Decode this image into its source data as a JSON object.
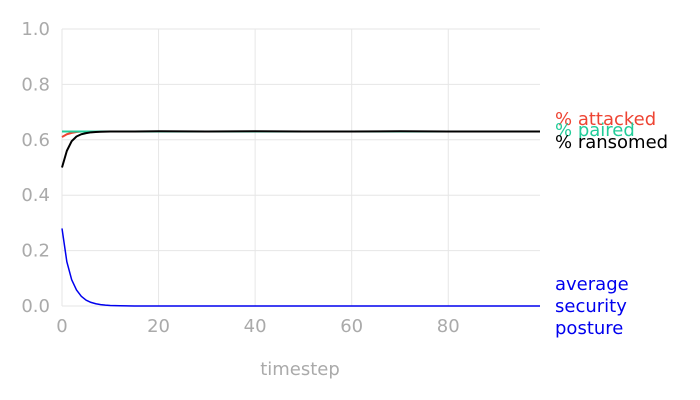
{
  "chart_data": {
    "type": "line",
    "xlabel": "timestep",
    "ylabel": "",
    "xlim": [
      0,
      99
    ],
    "ylim": [
      0,
      1.0
    ],
    "x_ticks": [
      0,
      20,
      40,
      60,
      80
    ],
    "y_ticks": [
      0.0,
      0.2,
      0.4,
      0.6,
      0.8,
      1.0
    ],
    "x_tick_labels": [
      "0",
      "20",
      "40",
      "60",
      "80"
    ],
    "y_tick_labels": [
      "0.0",
      "0.2",
      "0.4",
      "0.6",
      "0.8",
      "1.0"
    ],
    "grid": true,
    "legend": "right, direct labels",
    "series": [
      {
        "name": "% attacked",
        "color": "#ee4433",
        "x": [
          0,
          1,
          2,
          3,
          4,
          5,
          6,
          8,
          10,
          15,
          20,
          30,
          40,
          50,
          60,
          70,
          80,
          90,
          99
        ],
        "values": [
          0.61,
          0.62,
          0.625,
          0.628,
          0.63,
          0.63,
          0.63,
          0.63,
          0.63,
          0.63,
          0.63,
          0.63,
          0.63,
          0.63,
          0.63,
          0.63,
          0.63,
          0.63,
          0.63
        ]
      },
      {
        "name": "% paired",
        "color": "#22cc99",
        "x": [
          0,
          1,
          2,
          3,
          4,
          5,
          6,
          8,
          10,
          15,
          20,
          30,
          40,
          50,
          60,
          70,
          80,
          90,
          99
        ],
        "values": [
          0.63,
          0.63,
          0.63,
          0.63,
          0.63,
          0.63,
          0.63,
          0.63,
          0.63,
          0.63,
          0.63,
          0.63,
          0.63,
          0.63,
          0.63,
          0.63,
          0.63,
          0.63,
          0.63
        ]
      },
      {
        "name": "% ransomed",
        "color": "#000000",
        "x": [
          0,
          1,
          2,
          3,
          4,
          5,
          6,
          7,
          8,
          10,
          12,
          15,
          20,
          30,
          40,
          50,
          60,
          70,
          80,
          90,
          99
        ],
        "values": [
          0.5,
          0.56,
          0.595,
          0.612,
          0.62,
          0.624,
          0.627,
          0.628,
          0.629,
          0.63,
          0.63,
          0.63,
          0.631,
          0.63,
          0.631,
          0.63,
          0.63,
          0.631,
          0.63,
          0.63,
          0.63
        ]
      },
      {
        "name": "average security posture",
        "color": "#0000ee",
        "x": [
          0,
          1,
          2,
          3,
          4,
          5,
          6,
          7,
          8,
          9,
          10,
          12,
          15,
          20,
          30,
          40,
          60,
          80,
          99
        ],
        "values": [
          0.28,
          0.16,
          0.095,
          0.058,
          0.035,
          0.021,
          0.013,
          0.008,
          0.005,
          0.003,
          0.002,
          0.001,
          0.0,
          0.0,
          0.0,
          0.0,
          0.0,
          0.0,
          0.0
        ]
      }
    ],
    "series_labels": [
      {
        "text": "% attacked",
        "color": "#ee4433"
      },
      {
        "text": "% paired",
        "color": "#22cc99"
      },
      {
        "text": "% ransomed",
        "color": "#000000"
      },
      {
        "text": "average security posture",
        "lines": [
          "average",
          "security",
          "posture"
        ],
        "color": "#0000ee"
      }
    ]
  }
}
